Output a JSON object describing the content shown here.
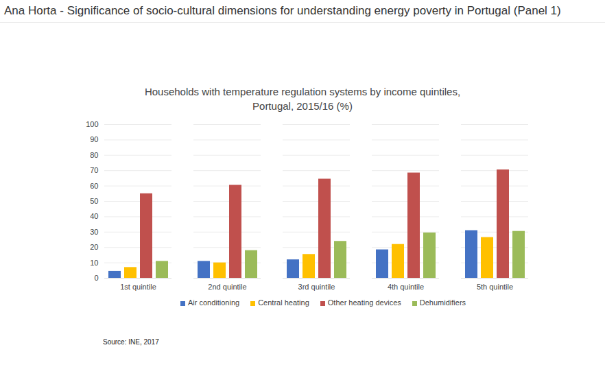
{
  "chart_data": {
    "type": "bar",
    "header": "Ana Horta - Significance of socio-cultural dimensions for understanding energy poverty in Portugal (Panel 1)",
    "title": "Households with temperature regulation systems by income quintiles, Portugal, 2015/16 (%)",
    "source": "Source: INE, 2017",
    "categories": [
      "1st quintile",
      "2nd quintile",
      "3rd quintile",
      "4th quintile",
      "5th quintile"
    ],
    "series": [
      {
        "name": "Air conditioning",
        "color": "#4472c4",
        "values": [
          4.5,
          11,
          12,
          18.5,
          31
        ]
      },
      {
        "name": "Central heating",
        "color": "#ffc000",
        "values": [
          7,
          10,
          15.5,
          22,
          26.5
        ]
      },
      {
        "name": "Other heating devices",
        "color": "#c0504d",
        "values": [
          55,
          60.5,
          64.5,
          68.5,
          70.5
        ]
      },
      {
        "name": "Dehumidifiers",
        "color": "#9bbb59",
        "values": [
          11,
          18,
          24,
          29.5,
          30.5
        ]
      }
    ],
    "ylim": [
      0,
      100
    ],
    "yticks": [
      0,
      10,
      20,
      30,
      40,
      50,
      60,
      70,
      80,
      90,
      100
    ],
    "grid": true,
    "legend": "bottom"
  }
}
